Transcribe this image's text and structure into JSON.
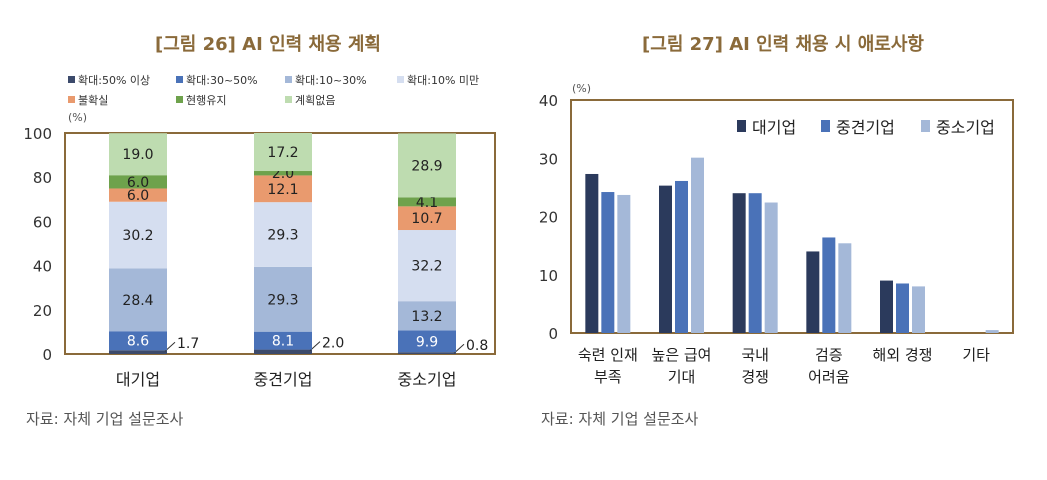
{
  "chart_data": [
    {
      "type": "bar",
      "stacked": true,
      "title": "[그림 26] AI 인력 채용 계획",
      "ylabel": "(%)",
      "ylim": [
        0,
        100
      ],
      "yticks": [
        "0",
        "20",
        "40",
        "60",
        "80",
        "100"
      ],
      "categories": [
        "대기업",
        "중견기업",
        "중소기업"
      ],
      "legend_position": "top",
      "series": [
        {
          "name": "확대:50% 이상",
          "color": "#3c4a6b",
          "values": [
            1.7,
            2.0,
            0.8
          ],
          "labels": [
            "1.7",
            "2.0",
            "0.8"
          ]
        },
        {
          "name": "확대:30~50%",
          "color": "#4a72b8",
          "values": [
            8.6,
            8.1,
            9.9
          ],
          "labels": [
            "8.6",
            "8.1",
            "9.9"
          ]
        },
        {
          "name": "확대:10~30%",
          "color": "#a4b8d8",
          "values": [
            28.4,
            29.3,
            13.2
          ],
          "labels": [
            "28.4",
            "29.3",
            "13.2"
          ]
        },
        {
          "name": "확대:10% 미만",
          "color": "#d5def0",
          "values": [
            30.2,
            29.3,
            32.2
          ],
          "labels": [
            "30.2",
            "29.3",
            "32.2"
          ]
        },
        {
          "name": "불확실",
          "color": "#e99a6e",
          "values": [
            6.0,
            12.1,
            10.7
          ],
          "labels": [
            "6.0",
            "12.1",
            "10.7"
          ]
        },
        {
          "name": "현행유지",
          "color": "#6ea24c",
          "values": [
            6.0,
            2.0,
            4.1
          ],
          "labels": [
            "6.0",
            "2.0",
            "4.1"
          ]
        },
        {
          "name": "계획없음",
          "color": "#bedcb0",
          "values": [
            19.0,
            17.2,
            28.9
          ],
          "labels": [
            "19.0",
            "17.2",
            "28.9"
          ]
        }
      ],
      "source": "자료: 자체 기업 설문조사"
    },
    {
      "type": "bar",
      "title": "[그림 27] AI 인력 채용 시 애로사항",
      "ylabel": "(%)",
      "ylim": [
        0,
        40
      ],
      "yticks": [
        "0",
        "10",
        "20",
        "30",
        "40"
      ],
      "categories": [
        [
          "숙련 인재",
          "부족"
        ],
        [
          "높은 급여",
          "기대"
        ],
        [
          "국내",
          "경쟁"
        ],
        [
          "검증",
          "어려움"
        ],
        [
          "해외 경쟁"
        ],
        [
          "기타"
        ]
      ],
      "legend_position": "top-right",
      "series": [
        {
          "name": "대기업",
          "color": "#2b3a5c",
          "values": [
            27.3,
            25.3,
            24.0,
            14.0,
            9.0,
            0.0
          ]
        },
        {
          "name": "중견기업",
          "color": "#4a72b8",
          "values": [
            24.2,
            26.1,
            24.0,
            16.4,
            8.5,
            0.0
          ]
        },
        {
          "name": "중소기업",
          "color": "#a4b8d8",
          "values": [
            23.7,
            30.1,
            22.4,
            15.4,
            8.0,
            0.5
          ]
        }
      ],
      "source": "자료: 자체 기업 설문조사"
    }
  ],
  "colors": {
    "title": "#8a6a3a",
    "frame": "#8a6a3a",
    "text": "#333333"
  }
}
